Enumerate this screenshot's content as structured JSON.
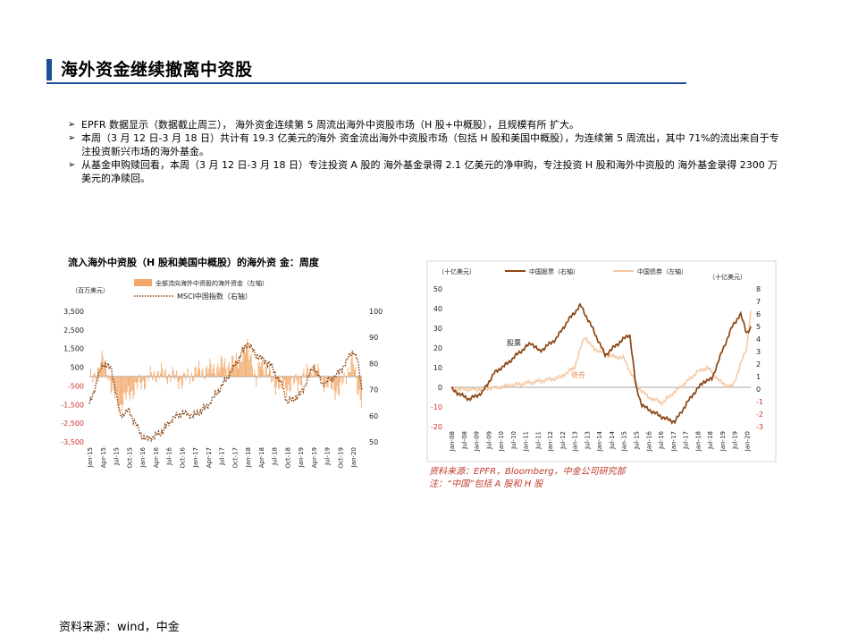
{
  "title": "海外资金继续撤离中资股",
  "bullets": [
    "EPFR 数据显示（数据截止周三）， 海外资金连续第 5 周流出海外中资股市场（H 股+中概股），且规模有所 扩大。",
    "本周（3 月 12 日-3 月 18 日）共计有 19.3 亿美元的海外 资金流出海外中资股市场（包括 H 股和美国中概股），为连续第 5 周流出，其中 71%的流出来自于专注投资新兴市场的海外基金。",
    "从基金申购赎回看，本周（3 月 12 日-3 月 18 日）专注投资 A 股的 海外基金录得 2.1 亿美元的净申购，专注投资 H 股和海外中资股的 海外基金录得 2300 万美元的净赎回。"
  ],
  "bullet_mark": "➢",
  "footer_source": "资料来源：wind，中金",
  "colors": {
    "accent": "#1f4e9a",
    "flow_bar": "#f2a96b",
    "msci_line": "#8b4513",
    "cn_equity": "#8b4513",
    "cn_bond": "#f5c9a3",
    "source_note": "#c0392b"
  },
  "chart_data": [
    {
      "type": "bar",
      "title": "流入海外中资股（H 股和美国中概股）的海外资 金：周度",
      "left_unit": "（百万美元）",
      "series": [
        {
          "name": "全部流向海外中资股的海外资金（左轴）",
          "axis": "left",
          "style": "bar",
          "x": [
            "2015-01",
            "2015-03",
            "2015-04",
            "2015-05",
            "2015-06",
            "2015-08",
            "2015-10",
            "2016-01",
            "2016-04",
            "2016-07",
            "2016-10",
            "2017-01",
            "2017-04",
            "2017-07",
            "2017-10",
            "2018-01",
            "2018-02",
            "2018-03",
            "2018-04",
            "2018-05",
            "2018-07",
            "2018-10",
            "2019-01",
            "2019-04",
            "2019-07",
            "2019-10",
            "2019-12",
            "2020-01",
            "2020-02",
            "2020-03"
          ],
          "values": [
            -400,
            600,
            1500,
            800,
            -1200,
            -2600,
            -1500,
            -500,
            300,
            200,
            -400,
            400,
            600,
            1000,
            1200,
            2500,
            1800,
            -800,
            1500,
            900,
            -600,
            -1000,
            -300,
            800,
            -700,
            -1300,
            600,
            1500,
            -800,
            -1930
          ]
        },
        {
          "name": "MSCI中国指数（右轴）",
          "axis": "right",
          "style": "dotted-line",
          "x": [
            "2015-01",
            "2015-04",
            "2015-06",
            "2015-08",
            "2015-10",
            "2016-01",
            "2016-02",
            "2016-05",
            "2016-08",
            "2016-10",
            "2017-01",
            "2017-04",
            "2017-07",
            "2017-10",
            "2018-01",
            "2018-03",
            "2018-06",
            "2018-09",
            "2018-10",
            "2019-01",
            "2019-04",
            "2019-06",
            "2019-08",
            "2019-10",
            "2020-01",
            "2020-02",
            "2020-03"
          ],
          "values": [
            64,
            80,
            78,
            60,
            62,
            52,
            51,
            53,
            59,
            61,
            60,
            64,
            71,
            79,
            88,
            83,
            80,
            71,
            65,
            68,
            79,
            72,
            74,
            77,
            85,
            81,
            70
          ]
        }
      ],
      "y_left": {
        "ticks": [
          "3,500",
          "2,500",
          "1,500",
          "500",
          "-500",
          "-1,500",
          "-2,500",
          "-3,500"
        ],
        "range": [
          -3500,
          3500
        ]
      },
      "y_right": {
        "ticks": [
          "100",
          "90",
          "80",
          "70",
          "60",
          "50"
        ],
        "range": [
          50,
          100
        ]
      },
      "x_ticks": [
        "Jan-15",
        "Apr-15",
        "Jul-15",
        "Oct-15",
        "Jan-16",
        "Apr-16",
        "Jul-16",
        "Oct-16",
        "Jan-17",
        "Apr-17",
        "Jul-17",
        "Oct-17",
        "Jan-18",
        "Apr-18",
        "Jul-18",
        "Oct-18",
        "Jan-19",
        "Apr-19",
        "Jul-19",
        "Oct-19",
        "Jan-20"
      ]
    },
    {
      "type": "line",
      "left_unit": "（十亿美元）",
      "right_unit": "（十亿美元）",
      "series": [
        {
          "name": "中国股票（右轴）",
          "axis": "right",
          "x": [
            "2008-01",
            "2008-06",
            "2008-10",
            "2009-04",
            "2009-10",
            "2010-04",
            "2010-10",
            "2011-04",
            "2011-08",
            "2012-04",
            "2012-10",
            "2013-04",
            "2013-10",
            "2014-04",
            "2014-10",
            "2015-04",
            "2015-07",
            "2015-10",
            "2016-04",
            "2016-10",
            "2017-02",
            "2017-06",
            "2017-10",
            "2018-04",
            "2018-08",
            "2019-01",
            "2019-06",
            "2019-10",
            "2020-01",
            "2020-03"
          ],
          "values": [
            0,
            -0.5,
            -0.8,
            -0.3,
            1.3,
            2.0,
            2.9,
            3.7,
            3.0,
            4.0,
            5.5,
            6.7,
            4.8,
            2.7,
            3.6,
            4.4,
            0.2,
            -1.3,
            -1.9,
            -2.4,
            -2.6,
            -1.6,
            -0.6,
            0.6,
            0.8,
            3.0,
            5.0,
            6.0,
            4.5,
            4.9
          ]
        },
        {
          "name": "中国债券（左轴）",
          "axis": "left",
          "x": [
            "2008-01",
            "2009-01",
            "2010-01",
            "2010-06",
            "2011-01",
            "2012-01",
            "2012-06",
            "2013-01",
            "2013-06",
            "2013-10",
            "2014-06",
            "2015-01",
            "2015-08",
            "2016-01",
            "2016-08",
            "2017-01",
            "2017-08",
            "2018-01",
            "2018-06",
            "2019-01",
            "2019-06",
            "2020-01",
            "2020-03"
          ],
          "values": [
            -1,
            -1,
            0,
            1,
            2,
            4,
            5,
            10,
            26,
            20,
            16,
            15,
            0,
            -5,
            -8,
            -3,
            3,
            8,
            10,
            2,
            0,
            20,
            38
          ]
        }
      ],
      "y_left": {
        "ticks": [
          "50",
          "40",
          "30",
          "20",
          "10",
          "0",
          "-10",
          "-20"
        ],
        "range": [
          -20,
          50
        ]
      },
      "y_right": {
        "ticks": [
          "8",
          "7",
          "6",
          "5",
          "4",
          "3",
          "2",
          "1",
          "0",
          "-1",
          "-2",
          "-3"
        ],
        "range": [
          -3,
          8
        ]
      },
      "x_ticks": [
        "Jan-08",
        "Jul-08",
        "Jan-09",
        "Jul-09",
        "Jan-10",
        "Jul-10",
        "Jan-11",
        "Jul-11",
        "Jan-12",
        "Jul-12",
        "Jan-13",
        "Jul-13",
        "Jan-14",
        "Jul-14",
        "Jan-15",
        "Jul-15",
        "Jan-16",
        "Jul-16",
        "Jan-17",
        "Jul-17",
        "Jan-18",
        "Jul-18",
        "Jan-19",
        "Jul-19",
        "Jan-20"
      ],
      "annotations": [
        "股票",
        "债券"
      ],
      "source_note": [
        "资料来源：EPFR，Bloomberg，中金公司研究部",
        "注：“中国”包括 A 股和 H 股"
      ]
    }
  ]
}
